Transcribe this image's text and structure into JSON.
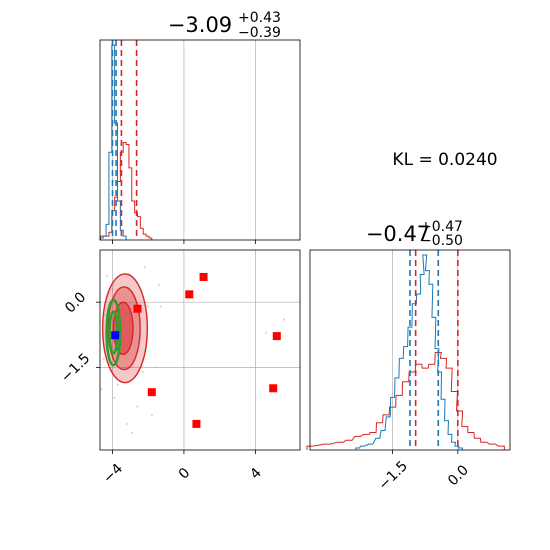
{
  "chart_data": {
    "type": "corner",
    "kl_label": "KL = 0.0240",
    "colors": {
      "blue": "#1f77b4",
      "red": "#d62728",
      "green": "#2ca02c",
      "marker_red": "#ff0000",
      "marker_blue": "#0000ff",
      "grid": "#b0b0b0"
    },
    "param1": {
      "title_value": "−3.09",
      "title_plus": "+0.43",
      "title_minus": "−0.39",
      "xlim": [
        -4.7,
        6.5
      ],
      "xticks": [
        -4,
        0,
        4
      ],
      "xtick_labels": [
        "−4",
        "0",
        "4"
      ],
      "blue_quantiles": [
        -4.0,
        -3.8
      ],
      "red_quantiles": [
        -3.5,
        -2.65
      ],
      "hist_bin_width": 0.16,
      "blue_hist": [
        [
          -4.6,
          0.01
        ],
        [
          -4.44,
          0.02
        ],
        [
          -4.28,
          0.08
        ],
        [
          -4.12,
          0.45
        ],
        [
          -3.96,
          1.0
        ],
        [
          -3.8,
          0.6
        ],
        [
          -3.64,
          0.2
        ],
        [
          -3.48,
          0.05
        ],
        [
          -3.32,
          0.02
        ]
      ],
      "red_hist": [
        [
          -4.6,
          0.02
        ],
        [
          -4.44,
          0.02
        ],
        [
          -4.28,
          0.02
        ],
        [
          -4.12,
          0.04
        ],
        [
          -3.96,
          0.15
        ],
        [
          -3.8,
          0.22
        ],
        [
          -3.64,
          0.3
        ],
        [
          -3.48,
          0.45
        ],
        [
          -3.32,
          0.5
        ],
        [
          -3.16,
          0.49
        ],
        [
          -3.0,
          0.37
        ],
        [
          -2.84,
          0.2
        ],
        [
          -2.68,
          0.14
        ],
        [
          -2.52,
          0.12
        ],
        [
          -2.36,
          0.06
        ],
        [
          -2.2,
          0.03
        ],
        [
          -2.04,
          0.02
        ],
        [
          -1.88,
          0.01
        ]
      ]
    },
    "param2": {
      "title_value": "−0.47",
      "title_plus": "+0.47",
      "title_minus": "−0.50",
      "xlim": [
        -3.4,
        1.2
      ],
      "xticks": [
        -1.5,
        0.0
      ],
      "xtick_labels": [
        "−1.5",
        "0.0"
      ],
      "blue_quantiles": [
        -1.1,
        -0.45
      ],
      "red_quantiles": [
        -0.97,
        0.0
      ],
      "hist_bin_width": 0.06,
      "blue_hist": [
        [
          -2.3,
          0.01
        ],
        [
          -2.2,
          0.02
        ],
        [
          -2.0,
          0.03
        ],
        [
          -1.84,
          0.06
        ],
        [
          -1.72,
          0.1
        ],
        [
          -1.6,
          0.17
        ],
        [
          -1.5,
          0.27
        ],
        [
          -1.4,
          0.37
        ],
        [
          -1.3,
          0.47
        ],
        [
          -1.2,
          0.53
        ],
        [
          -1.1,
          0.63
        ],
        [
          -1.0,
          0.75
        ],
        [
          -0.9,
          0.8
        ],
        [
          -0.82,
          0.9
        ],
        [
          -0.76,
          1.0
        ],
        [
          -0.7,
          0.92
        ],
        [
          -0.62,
          0.85
        ],
        [
          -0.55,
          0.68
        ],
        [
          -0.48,
          0.52
        ],
        [
          -0.42,
          0.4
        ],
        [
          -0.34,
          0.26
        ],
        [
          -0.26,
          0.15
        ],
        [
          -0.18,
          0.08
        ],
        [
          -0.1,
          0.04
        ],
        [
          -0.02,
          0.02
        ],
        [
          0.06,
          0.01
        ]
      ],
      "red_hist": [
        [
          -3.4,
          0.02
        ],
        [
          -3.0,
          0.03
        ],
        [
          -2.7,
          0.04
        ],
        [
          -2.5,
          0.05
        ],
        [
          -2.3,
          0.07
        ],
        [
          -2.1,
          0.08
        ],
        [
          -1.95,
          0.09
        ],
        [
          -1.8,
          0.14
        ],
        [
          -1.65,
          0.18
        ],
        [
          -1.5,
          0.22
        ],
        [
          -1.35,
          0.28
        ],
        [
          -1.2,
          0.35
        ],
        [
          -1.05,
          0.4
        ],
        [
          -0.9,
          0.44
        ],
        [
          -0.75,
          0.42
        ],
        [
          -0.6,
          0.44
        ],
        [
          -0.45,
          0.5
        ],
        [
          -0.33,
          0.47
        ],
        [
          -0.2,
          0.42
        ],
        [
          -0.08,
          0.3
        ],
        [
          0.04,
          0.2
        ],
        [
          0.16,
          0.12
        ],
        [
          0.3,
          0.09
        ],
        [
          0.45,
          0.06
        ],
        [
          0.6,
          0.04
        ],
        [
          0.8,
          0.03
        ],
        [
          1.0,
          0.02
        ]
      ]
    },
    "joint": {
      "xlim": [
        -4.7,
        6.5
      ],
      "ylim": [
        -3.4,
        1.2
      ],
      "yticks": [
        0.0,
        -1.5
      ],
      "ytick_labels": [
        "0.0",
        "−1.5"
      ],
      "red_markers": [
        [
          1.1,
          0.58
        ],
        [
          0.3,
          0.18
        ],
        [
          -2.6,
          -0.15
        ],
        [
          5.2,
          -0.78
        ],
        [
          5.0,
          -1.98
        ],
        [
          -1.8,
          -2.07
        ],
        [
          0.7,
          -2.8
        ]
      ],
      "blue_marker": [
        -3.85,
        -0.76
      ],
      "red_contours": [
        {
          "cx": -3.3,
          "cy": -0.6,
          "rx": 1.25,
          "ry": 1.25,
          "opacity": 0.25
        },
        {
          "cx": -3.35,
          "cy": -0.6,
          "rx": 0.9,
          "ry": 0.95,
          "opacity": 0.35
        },
        {
          "cx": -3.4,
          "cy": -0.6,
          "rx": 0.55,
          "ry": 0.6,
          "opacity": 0.5
        }
      ],
      "green_contours": [
        {
          "cx": -3.95,
          "cy": -0.7,
          "rx": 0.38,
          "ry": 0.75
        },
        {
          "cx": -3.95,
          "cy": -0.7,
          "rx": 0.22,
          "ry": 0.48
        }
      ],
      "scatter": [
        [
          -4.2,
          -0.9
        ],
        [
          -4.4,
          -0.3
        ],
        [
          -4.3,
          0.6
        ],
        [
          -3.7,
          -1.9
        ],
        [
          -2.3,
          -1.6
        ],
        [
          -2.0,
          -0.1
        ],
        [
          -4.5,
          -1.3
        ],
        [
          -3.9,
          -2.2
        ],
        [
          -1.6,
          -1.5
        ],
        [
          -1.3,
          -0.1
        ],
        [
          -2.6,
          -2.4
        ],
        [
          -1.8,
          -2.6
        ],
        [
          -4.0,
          0.3
        ],
        [
          -2.2,
          0.8
        ],
        [
          -3.2,
          -2.8
        ],
        [
          4.6,
          -0.7
        ],
        [
          5.6,
          -0.4
        ],
        [
          -1.4,
          0.4
        ],
        [
          -4.6,
          -2.0
        ],
        [
          -2.9,
          -3.0
        ]
      ]
    }
  }
}
